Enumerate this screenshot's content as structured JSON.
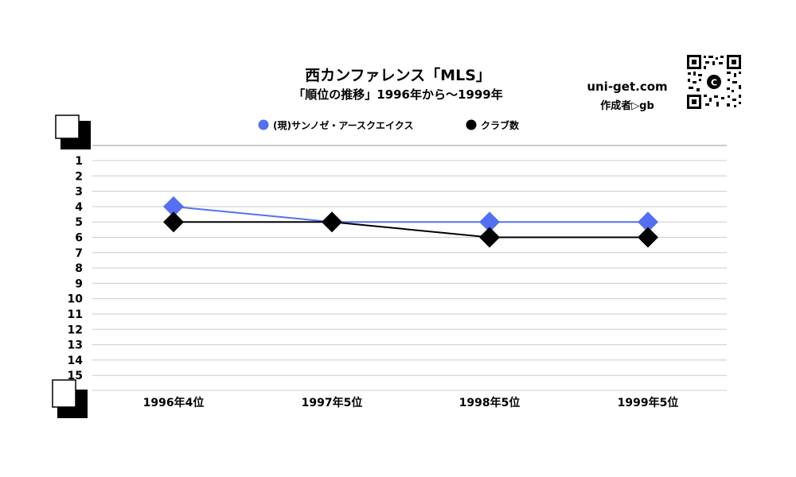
{
  "header": {
    "title": "西カンファレンス「MLS」",
    "subtitle": "「順位の推移」1996年から～1999年",
    "site": "uni-get.com",
    "author": "作成者▷gb"
  },
  "chart_data": {
    "type": "line",
    "title": "西カンファレンス「MLS」",
    "subtitle": "「順位の推移」1996年から～1999年",
    "categories": [
      "1996年4位",
      "1997年5位",
      "1998年5位",
      "1999年5位"
    ],
    "y_ticks": [
      "1",
      "2",
      "3",
      "4",
      "5",
      "6",
      "7",
      "8",
      "9",
      "10",
      "11",
      "12",
      "13",
      "14",
      "15"
    ],
    "ylim": [
      1,
      15
    ],
    "y_inverted": true,
    "grid": true,
    "legend_position": "top",
    "series": [
      {
        "name": "(現)サンノゼ・アースクエイクス",
        "values": [
          4,
          5,
          5,
          5
        ],
        "color": "#5470f0",
        "marker": "diamond",
        "legend_marker": "circle"
      },
      {
        "name": "クラブ数",
        "values": [
          5,
          5,
          6,
          6
        ],
        "color": "#000000",
        "marker": "diamond",
        "legend_marker": "circle"
      }
    ]
  },
  "colors": {
    "grid": "#cccccc",
    "accent": "#5470f0"
  },
  "icons": {
    "qr": "qr-code-icon",
    "corner": "corner-bracket-icon"
  }
}
